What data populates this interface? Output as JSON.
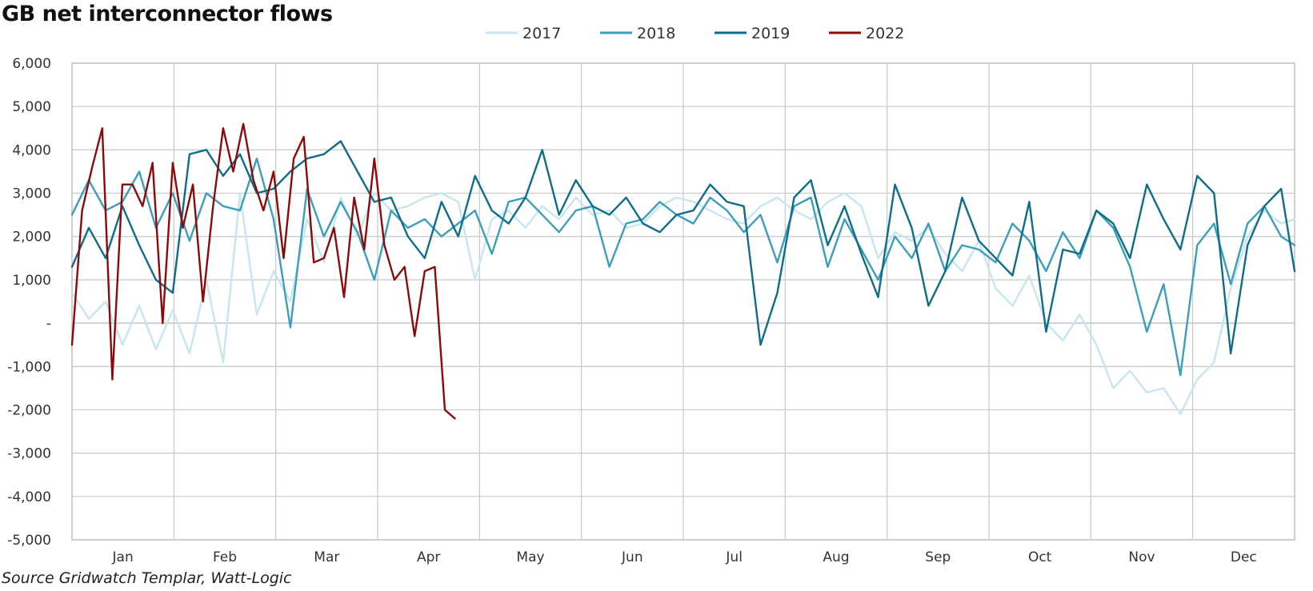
{
  "title": "GB net interconnector flows",
  "source": "Source Gridwatch Templar, Watt-Logic",
  "chart_data": {
    "type": "line",
    "title": "GB net interconnector flows",
    "xlabel": "",
    "ylabel": "",
    "categories": [
      "Jan",
      "Feb",
      "Mar",
      "Apr",
      "May",
      "Jun",
      "Jul",
      "Aug",
      "Sep",
      "Oct",
      "Nov",
      "Dec"
    ],
    "x_unit": "day of year",
    "xlim": [
      1,
      365
    ],
    "ylim": [
      -5000,
      6000
    ],
    "y_ticks": [
      6000,
      5000,
      4000,
      3000,
      2000,
      1000,
      0,
      -1000,
      -2000,
      -3000,
      -4000,
      -5000
    ],
    "y_tick_labels": [
      "6,000",
      "5,000",
      "4,000",
      "3,000",
      "2,000",
      "1,000",
      "-",
      "-1,000",
      "-2,000",
      "-3,000",
      "-4,000",
      "-5,000"
    ],
    "grid": true,
    "legend_position": "top-center",
    "series": [
      {
        "name": "2017",
        "color": "#c7e6ee",
        "x": [
          1,
          6,
          11,
          16,
          21,
          26,
          31,
          36,
          41,
          46,
          51,
          56,
          61,
          66,
          71,
          76,
          81,
          86,
          91,
          96,
          101,
          106,
          111,
          116,
          121,
          126,
          131,
          136,
          141,
          146,
          151,
          156,
          161,
          166,
          171,
          176,
          181,
          186,
          191,
          196,
          201,
          206,
          211,
          216,
          221,
          226,
          231,
          236,
          241,
          246,
          251,
          256,
          261,
          266,
          271,
          276,
          281,
          286,
          291,
          296,
          301,
          306,
          311,
          316,
          321,
          326,
          331,
          336,
          341,
          346,
          351,
          356,
          361,
          365
        ],
        "values": [
          700,
          100,
          500,
          -500,
          400,
          -600,
          300,
          -700,
          1000,
          -900,
          3000,
          200,
          1200,
          500,
          2400,
          1400,
          2900,
          2000,
          3000,
          2600,
          2700,
          2900,
          3000,
          2800,
          1000,
          2400,
          2600,
          2200,
          2700,
          2400,
          2900,
          2500,
          2600,
          2200,
          2300,
          2700,
          2900,
          2800,
          2600,
          2400,
          2300,
          2700,
          2900,
          2600,
          2400,
          2800,
          3000,
          2700,
          1500,
          2100,
          1900,
          2200,
          1600,
          1200,
          1900,
          800,
          400,
          1100,
          0,
          -400,
          200,
          -500,
          -1500,
          -1100,
          -1600,
          -1500,
          -2100,
          -1300,
          -900,
          800,
          2000,
          2600,
          2300,
          2400
        ]
      },
      {
        "name": "2018",
        "color": "#3b9fbc",
        "x": [
          1,
          6,
          11,
          16,
          21,
          26,
          31,
          36,
          41,
          46,
          51,
          56,
          61,
          66,
          71,
          76,
          81,
          86,
          91,
          96,
          101,
          106,
          111,
          116,
          121,
          126,
          131,
          136,
          141,
          146,
          151,
          156,
          161,
          166,
          171,
          176,
          181,
          186,
          191,
          196,
          201,
          206,
          211,
          216,
          221,
          226,
          231,
          236,
          241,
          246,
          251,
          256,
          261,
          266,
          271,
          276,
          281,
          286,
          291,
          296,
          301,
          306,
          311,
          316,
          321,
          326,
          331,
          336,
          341,
          346,
          351,
          356,
          361,
          365
        ],
        "values": [
          2500,
          3300,
          2600,
          2800,
          3500,
          2200,
          3000,
          1900,
          3000,
          2700,
          2600,
          3800,
          2400,
          -100,
          3100,
          2000,
          2800,
          2100,
          1000,
          2600,
          2200,
          2400,
          2000,
          2300,
          2600,
          1600,
          2800,
          2900,
          2500,
          2100,
          2600,
          2700,
          1300,
          2300,
          2400,
          2800,
          2500,
          2300,
          2900,
          2600,
          2100,
          2500,
          1400,
          2700,
          2900,
          1300,
          2400,
          1700,
          1000,
          2000,
          1500,
          2300,
          1200,
          1800,
          1700,
          1400,
          2300,
          1900,
          1200,
          2100,
          1500,
          2600,
          2200,
          1300,
          -200,
          900,
          -1200,
          1800,
          2300,
          900,
          2300,
          2700,
          2000,
          1800
        ]
      },
      {
        "name": "2019",
        "color": "#0e6e8a",
        "x": [
          1,
          6,
          11,
          16,
          21,
          26,
          31,
          36,
          41,
          46,
          51,
          56,
          61,
          66,
          71,
          76,
          81,
          86,
          91,
          96,
          101,
          106,
          111,
          116,
          121,
          126,
          131,
          136,
          141,
          146,
          151,
          156,
          161,
          166,
          171,
          176,
          181,
          186,
          191,
          196,
          201,
          206,
          211,
          216,
          221,
          226,
          231,
          236,
          241,
          246,
          251,
          256,
          261,
          266,
          271,
          276,
          281,
          286,
          291,
          296,
          301,
          306,
          311,
          316,
          321,
          326,
          331,
          336,
          341,
          346,
          351,
          356,
          361,
          365
        ],
        "values": [
          1300,
          2200,
          1500,
          2700,
          1800,
          1000,
          700,
          3900,
          4000,
          3400,
          3900,
          3000,
          3100,
          3500,
          3800,
          3900,
          4200,
          3500,
          2800,
          2900,
          2000,
          1500,
          2800,
          2000,
          3400,
          2600,
          2300,
          2900,
          4000,
          2500,
          3300,
          2700,
          2500,
          2900,
          2300,
          2100,
          2500,
          2600,
          3200,
          2800,
          2700,
          -500,
          700,
          2900,
          3300,
          1800,
          2700,
          1600,
          600,
          3200,
          2200,
          400,
          1200,
          2900,
          1900,
          1500,
          1100,
          2800,
          -200,
          1700,
          1600,
          2600,
          2300,
          1500,
          3200,
          2400,
          1700,
          3400,
          3000,
          -700,
          1800,
          2700,
          3100,
          1200
        ]
      },
      {
        "name": "2022",
        "color": "#8b0a0a",
        "x": [
          1,
          4,
          7,
          10,
          13,
          16,
          19,
          22,
          25,
          28,
          31,
          34,
          37,
          40,
          43,
          46,
          49,
          52,
          55,
          58,
          61,
          64,
          67,
          70,
          73,
          76,
          79,
          82,
          85,
          88,
          91,
          94,
          97,
          100,
          103,
          106,
          109,
          112,
          115
        ],
        "values": [
          -500,
          2600,
          3600,
          4500,
          -1300,
          3200,
          3200,
          2700,
          3700,
          0,
          3700,
          2200,
          3200,
          500,
          2700,
          4500,
          3500,
          4600,
          3300,
          2600,
          3500,
          1500,
          3800,
          4300,
          1400,
          1500,
          2200,
          600,
          2900,
          1700,
          3800,
          1800,
          1000,
          1300,
          -300,
          1200,
          1300,
          -2000,
          -2200
        ]
      }
    ]
  }
}
